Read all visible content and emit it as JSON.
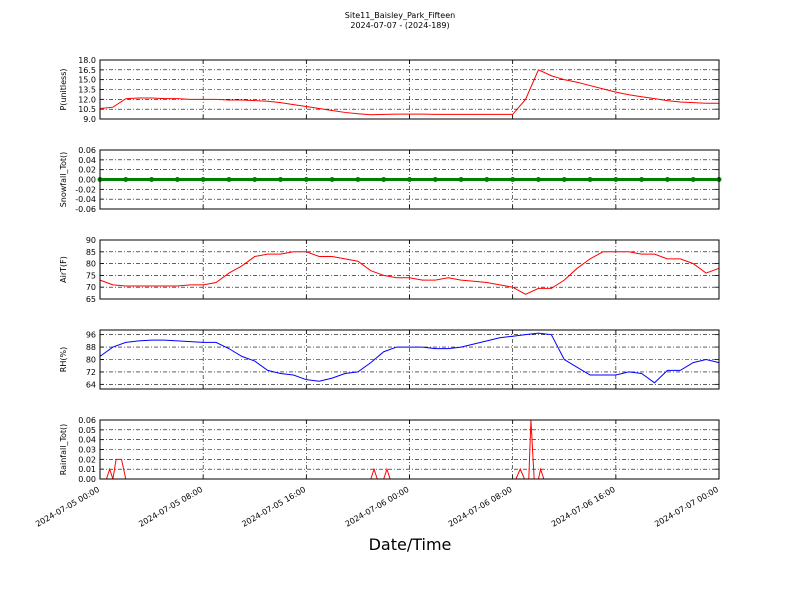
{
  "title": "Site11_Baisley_Park_Fifteen",
  "subtitle": "2024-07-07 - (2024-189)",
  "xlabel": "Date/Time",
  "chart_data": [
    {
      "type": "line",
      "ylabel": "P(unitless)",
      "xlim": [
        "2024-07-05 00:00",
        "2024-07-07 00:00"
      ],
      "ylim": [
        9,
        18
      ],
      "yticks": [
        {
          "value": 9,
          "label": "9.0"
        },
        {
          "value": 10.5,
          "label": "10.5"
        },
        {
          "value": 12,
          "label": "12.0"
        },
        {
          "value": 13.5,
          "label": "13.5"
        },
        {
          "value": 15,
          "label": "15.0"
        },
        {
          "value": 16.5,
          "label": "16.5"
        },
        {
          "value": 18,
          "label": "18.0"
        }
      ],
      "xticks": [
        "2024-07-05 00:00",
        "2024-07-05 08:00",
        "2024-07-05 16:00",
        "2024-07-06 00:00",
        "2024-07-06 08:00",
        "2024-07-06 16:00",
        "2024-07-07 00:00"
      ],
      "grid": true,
      "x": [
        "2024-07-05 00:00",
        "2024-07-05 01:00",
        "2024-07-05 02:00",
        "2024-07-05 03:00",
        "2024-07-05 04:00",
        "2024-07-05 05:00",
        "2024-07-05 06:00",
        "2024-07-05 07:00",
        "2024-07-05 08:00",
        "2024-07-05 09:00",
        "2024-07-05 10:00",
        "2024-07-05 11:00",
        "2024-07-05 12:00",
        "2024-07-05 13:00",
        "2024-07-05 14:00",
        "2024-07-05 15:00",
        "2024-07-05 16:00",
        "2024-07-05 17:00",
        "2024-07-05 18:00",
        "2024-07-05 19:00",
        "2024-07-05 20:00",
        "2024-07-05 21:00",
        "2024-07-05 22:00",
        "2024-07-05 23:00",
        "2024-07-06 00:00",
        "2024-07-06 01:00",
        "2024-07-06 02:00",
        "2024-07-06 03:00",
        "2024-07-06 04:00",
        "2024-07-06 05:00",
        "2024-07-06 06:00",
        "2024-07-06 07:00",
        "2024-07-06 08:00",
        "2024-07-06 09:00",
        "2024-07-06 10:00",
        "2024-07-06 11:00",
        "2024-07-06 12:00",
        "2024-07-06 13:00",
        "2024-07-06 14:00",
        "2024-07-06 15:00",
        "2024-07-06 16:00",
        "2024-07-06 17:00",
        "2024-07-06 18:00",
        "2024-07-06 19:00",
        "2024-07-06 20:00",
        "2024-07-06 21:00",
        "2024-07-06 22:00",
        "2024-07-06 23:00",
        "2024-07-07 00:00"
      ],
      "series": [
        {
          "name": "P",
          "color": "#ff0000",
          "values": [
            10.6,
            10.8,
            12.1,
            12.2,
            12.2,
            12.1,
            12.1,
            12.0,
            12.0,
            12.0,
            11.9,
            11.9,
            11.8,
            11.7,
            11.5,
            11.2,
            10.9,
            10.6,
            10.3,
            10.0,
            9.8,
            9.65,
            9.7,
            9.75,
            9.75,
            9.75,
            9.7,
            9.7,
            9.7,
            9.7,
            9.7,
            9.7,
            9.7,
            12.0,
            16.5,
            15.6,
            15.0,
            14.6,
            14.1,
            13.6,
            13.1,
            12.7,
            12.4,
            12.1,
            11.8,
            11.6,
            11.5,
            11.4,
            11.4
          ]
        }
      ]
    },
    {
      "type": "line",
      "ylabel": "Snowfall_Tot()",
      "xlim": [
        "2024-07-05 00:00",
        "2024-07-07 00:00"
      ],
      "ylim": [
        -0.06,
        0.06
      ],
      "yticks": [
        -0.06,
        -0.04,
        -0.02,
        {
          "value": 0,
          "label": "0.00"
        },
        0.02,
        0.04,
        0.06
      ],
      "xticks": [
        "2024-07-05 00:00",
        "2024-07-05 08:00",
        "2024-07-05 16:00",
        "2024-07-06 00:00",
        "2024-07-06 08:00",
        "2024-07-06 16:00",
        "2024-07-07 00:00"
      ],
      "grid": true,
      "markers": true,
      "x": [
        "2024-07-05 00:00",
        "2024-07-05 02:00",
        "2024-07-05 04:00",
        "2024-07-05 06:00",
        "2024-07-05 08:00",
        "2024-07-05 10:00",
        "2024-07-05 12:00",
        "2024-07-05 14:00",
        "2024-07-05 16:00",
        "2024-07-05 18:00",
        "2024-07-05 20:00",
        "2024-07-05 22:00",
        "2024-07-06 00:00",
        "2024-07-06 02:00",
        "2024-07-06 04:00",
        "2024-07-06 06:00",
        "2024-07-06 08:00",
        "2024-07-06 10:00",
        "2024-07-06 12:00",
        "2024-07-06 14:00",
        "2024-07-06 16:00",
        "2024-07-06 18:00",
        "2024-07-06 20:00",
        "2024-07-06 22:00",
        "2024-07-07 00:00"
      ],
      "series": [
        {
          "name": "Snowfall",
          "color": "#008000",
          "values": [
            0,
            0,
            0,
            0,
            0,
            0,
            0,
            0,
            0,
            0,
            0,
            0,
            0,
            0,
            0,
            0,
            0,
            0,
            0,
            0,
            0,
            0,
            0,
            0,
            0
          ]
        }
      ]
    },
    {
      "type": "line",
      "ylabel": "AirT(F)",
      "xlim": [
        "2024-07-05 00:00",
        "2024-07-07 00:00"
      ],
      "ylim": [
        65,
        90
      ],
      "yticks": [
        65,
        70,
        75,
        80,
        85,
        90
      ],
      "xticks": [
        "2024-07-05 00:00",
        "2024-07-05 08:00",
        "2024-07-05 16:00",
        "2024-07-06 00:00",
        "2024-07-06 08:00",
        "2024-07-06 16:00",
        "2024-07-07 00:00"
      ],
      "grid": true,
      "x": [
        "2024-07-05 00:00",
        "2024-07-05 01:00",
        "2024-07-05 02:00",
        "2024-07-05 03:00",
        "2024-07-05 04:00",
        "2024-07-05 05:00",
        "2024-07-05 06:00",
        "2024-07-05 07:00",
        "2024-07-05 08:00",
        "2024-07-05 09:00",
        "2024-07-05 10:00",
        "2024-07-05 11:00",
        "2024-07-05 12:00",
        "2024-07-05 13:00",
        "2024-07-05 14:00",
        "2024-07-05 15:00",
        "2024-07-05 16:00",
        "2024-07-05 17:00",
        "2024-07-05 18:00",
        "2024-07-05 19:00",
        "2024-07-05 20:00",
        "2024-07-05 21:00",
        "2024-07-05 22:00",
        "2024-07-05 23:00",
        "2024-07-06 00:00",
        "2024-07-06 01:00",
        "2024-07-06 02:00",
        "2024-07-06 03:00",
        "2024-07-06 04:00",
        "2024-07-06 05:00",
        "2024-07-06 06:00",
        "2024-07-06 07:00",
        "2024-07-06 08:00",
        "2024-07-06 09:00",
        "2024-07-06 10:00",
        "2024-07-06 11:00",
        "2024-07-06 12:00",
        "2024-07-06 13:00",
        "2024-07-06 14:00",
        "2024-07-06 15:00",
        "2024-07-06 16:00",
        "2024-07-06 17:00",
        "2024-07-06 18:00",
        "2024-07-06 19:00",
        "2024-07-06 20:00",
        "2024-07-06 21:00",
        "2024-07-06 22:00",
        "2024-07-06 23:00",
        "2024-07-07 00:00"
      ],
      "series": [
        {
          "name": "AirT",
          "color": "#ff0000",
          "values": [
            73,
            71,
            70.5,
            70.5,
            70.5,
            70.5,
            70.5,
            71,
            71,
            72,
            76,
            79,
            83,
            84,
            84,
            85,
            85,
            83,
            83,
            82,
            81,
            77,
            75,
            74,
            74,
            73,
            73,
            74,
            73,
            72.5,
            72,
            71,
            70,
            67,
            69.5,
            69.5,
            73,
            78,
            82,
            85,
            85,
            85,
            84,
            84,
            82,
            82,
            80,
            76,
            78
          ]
        }
      ]
    },
    {
      "type": "line",
      "ylabel": "RH(%)",
      "xlim": [
        "2024-07-05 00:00",
        "2024-07-07 00:00"
      ],
      "ylim": [
        61,
        99
      ],
      "yticks": [
        64,
        72,
        80,
        88,
        96
      ],
      "xticks": [
        "2024-07-05 00:00",
        "2024-07-05 08:00",
        "2024-07-05 16:00",
        "2024-07-06 00:00",
        "2024-07-06 08:00",
        "2024-07-06 16:00",
        "2024-07-07 00:00"
      ],
      "grid": true,
      "x": [
        "2024-07-05 00:00",
        "2024-07-05 01:00",
        "2024-07-05 02:00",
        "2024-07-05 03:00",
        "2024-07-05 04:00",
        "2024-07-05 05:00",
        "2024-07-05 06:00",
        "2024-07-05 07:00",
        "2024-07-05 08:00",
        "2024-07-05 09:00",
        "2024-07-05 10:00",
        "2024-07-05 11:00",
        "2024-07-05 12:00",
        "2024-07-05 13:00",
        "2024-07-05 14:00",
        "2024-07-05 15:00",
        "2024-07-05 16:00",
        "2024-07-05 17:00",
        "2024-07-05 18:00",
        "2024-07-05 19:00",
        "2024-07-05 20:00",
        "2024-07-05 21:00",
        "2024-07-05 22:00",
        "2024-07-05 23:00",
        "2024-07-06 00:00",
        "2024-07-06 01:00",
        "2024-07-06 02:00",
        "2024-07-06 03:00",
        "2024-07-06 04:00",
        "2024-07-06 05:00",
        "2024-07-06 06:00",
        "2024-07-06 07:00",
        "2024-07-06 08:00",
        "2024-07-06 09:00",
        "2024-07-06 10:00",
        "2024-07-06 11:00",
        "2024-07-06 12:00",
        "2024-07-06 13:00",
        "2024-07-06 14:00",
        "2024-07-06 15:00",
        "2024-07-06 16:00",
        "2024-07-06 17:00",
        "2024-07-06 18:00",
        "2024-07-06 19:00",
        "2024-07-06 20:00",
        "2024-07-06 21:00",
        "2024-07-06 22:00",
        "2024-07-06 23:00",
        "2024-07-07 00:00"
      ],
      "series": [
        {
          "name": "RH",
          "color": "#0000ff",
          "values": [
            82,
            88,
            91,
            92,
            92.5,
            92.5,
            92,
            91.5,
            91,
            91,
            87,
            82,
            79,
            73,
            71,
            70,
            67,
            66,
            68,
            71,
            72,
            78,
            85,
            88,
            88,
            88,
            87,
            87,
            88,
            90,
            92,
            94,
            95,
            96,
            97,
            96,
            80,
            75,
            70,
            70,
            70,
            72,
            71,
            65,
            73,
            73,
            78,
            80,
            78
          ]
        }
      ]
    },
    {
      "type": "line",
      "ylabel": "Rainfall_Tot()",
      "xlim": [
        "2024-07-05 00:00",
        "2024-07-07 00:00"
      ],
      "ylim": [
        0,
        0.06
      ],
      "yticks": [
        {
          "value": 0,
          "label": "0.00"
        },
        0.01,
        0.02,
        0.03,
        0.04,
        0.05,
        0.06
      ],
      "xticks": [
        "2024-07-05 00:00",
        "2024-07-05 08:00",
        "2024-07-05 16:00",
        "2024-07-06 00:00",
        "2024-07-06 08:00",
        "2024-07-06 16:00",
        "2024-07-07 00:00"
      ],
      "grid": true,
      "show_xtick_labels": true,
      "x": [
        "2024-07-05 00:00",
        "2024-07-05 00:30",
        "2024-07-05 00:45",
        "2024-07-05 01:00",
        "2024-07-05 01:15",
        "2024-07-05 01:40",
        "2024-07-05 02:00",
        "2024-07-05 21:00",
        "2024-07-05 21:15",
        "2024-07-05 21:30",
        "2024-07-05 22:00",
        "2024-07-05 22:15",
        "2024-07-05 22:30",
        "2024-07-06 08:15",
        "2024-07-06 08:35",
        "2024-07-06 08:55",
        "2024-07-06 09:15",
        "2024-07-06 09:25",
        "2024-07-06 09:40",
        "2024-07-06 10:00",
        "2024-07-06 10:10",
        "2024-07-06 10:25",
        "2024-07-07 00:00"
      ],
      "series": [
        {
          "name": "Rainfall",
          "color": "#ff0000",
          "values": [
            0,
            0,
            0.01,
            0,
            0.02,
            0.02,
            0,
            0,
            0.01,
            0,
            0,
            0.01,
            0,
            0,
            0.01,
            0,
            0,
            0.06,
            0,
            0,
            0.01,
            0,
            0
          ]
        }
      ]
    }
  ]
}
